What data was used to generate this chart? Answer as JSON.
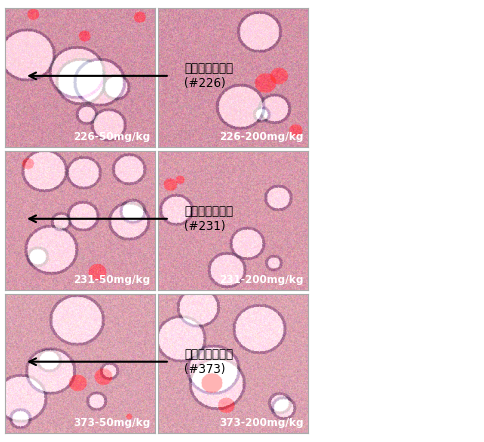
{
  "figure_width": 4.85,
  "figure_height": 4.42,
  "dpi": 100,
  "background_color": "#ffffff",
  "grid_rows": 3,
  "grid_cols": 2,
  "image_labels": [
    "226-50mg/kg",
    "226-200mg/kg",
    "231-50mg/kg",
    "231-200mg/kg",
    "373-50mg/kg",
    "373-200mg/kg"
  ],
  "arrow_labels": [
    "더덕발효추출물\n(#226)",
    "더덕발효추출물\n(#231)",
    "더덕발효추출물\n(#373)"
  ],
  "label_color": "#333333",
  "label_fontsize": 7.5,
  "arrow_fontsize": 8.5,
  "border_color": "#aaaaaa",
  "img_bg_color_pink": "#f0d0d8",
  "img_bg_color_light": "#f8eef0"
}
